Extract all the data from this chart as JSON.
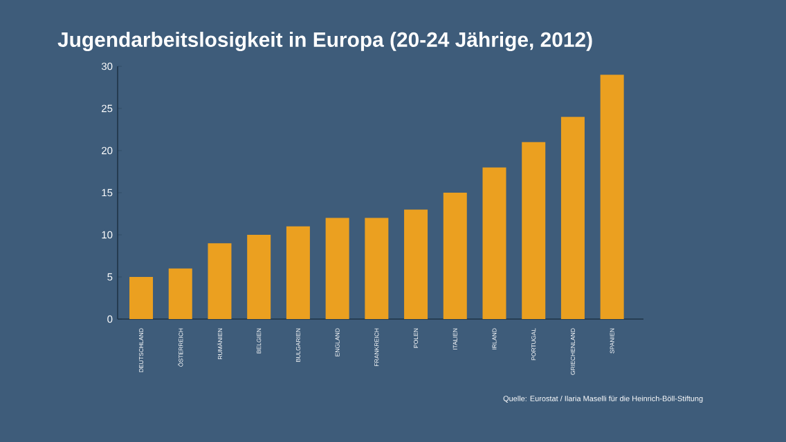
{
  "chart_data": {
    "type": "bar",
    "title": "Jugendarbeitslosigkeit in Europa (20-24 Jährige, 2012)",
    "categories": [
      "DEUTSCHLAND",
      "ÖSTERREICH",
      "RUMÄNIEN",
      "BELGIEN",
      "BULGARIEN",
      "ENGLAND",
      "FRANKREICH",
      "POLEN",
      "ITALIEN",
      "IRLAND",
      "PORTUGAL",
      "GRIECHENLAND",
      "SPANIEN"
    ],
    "values": [
      5,
      6,
      9,
      10,
      11,
      12,
      12,
      13,
      15,
      18,
      21,
      24,
      29
    ],
    "color": "#eba020",
    "ylim": [
      0,
      30
    ],
    "yticks": [
      0,
      5,
      10,
      15,
      20,
      25,
      30
    ],
    "grid": false,
    "annotations": [
      "Quelle: Eurostat / Ilaria Maselli für die Heinrich-Böll-Stiftung"
    ]
  }
}
